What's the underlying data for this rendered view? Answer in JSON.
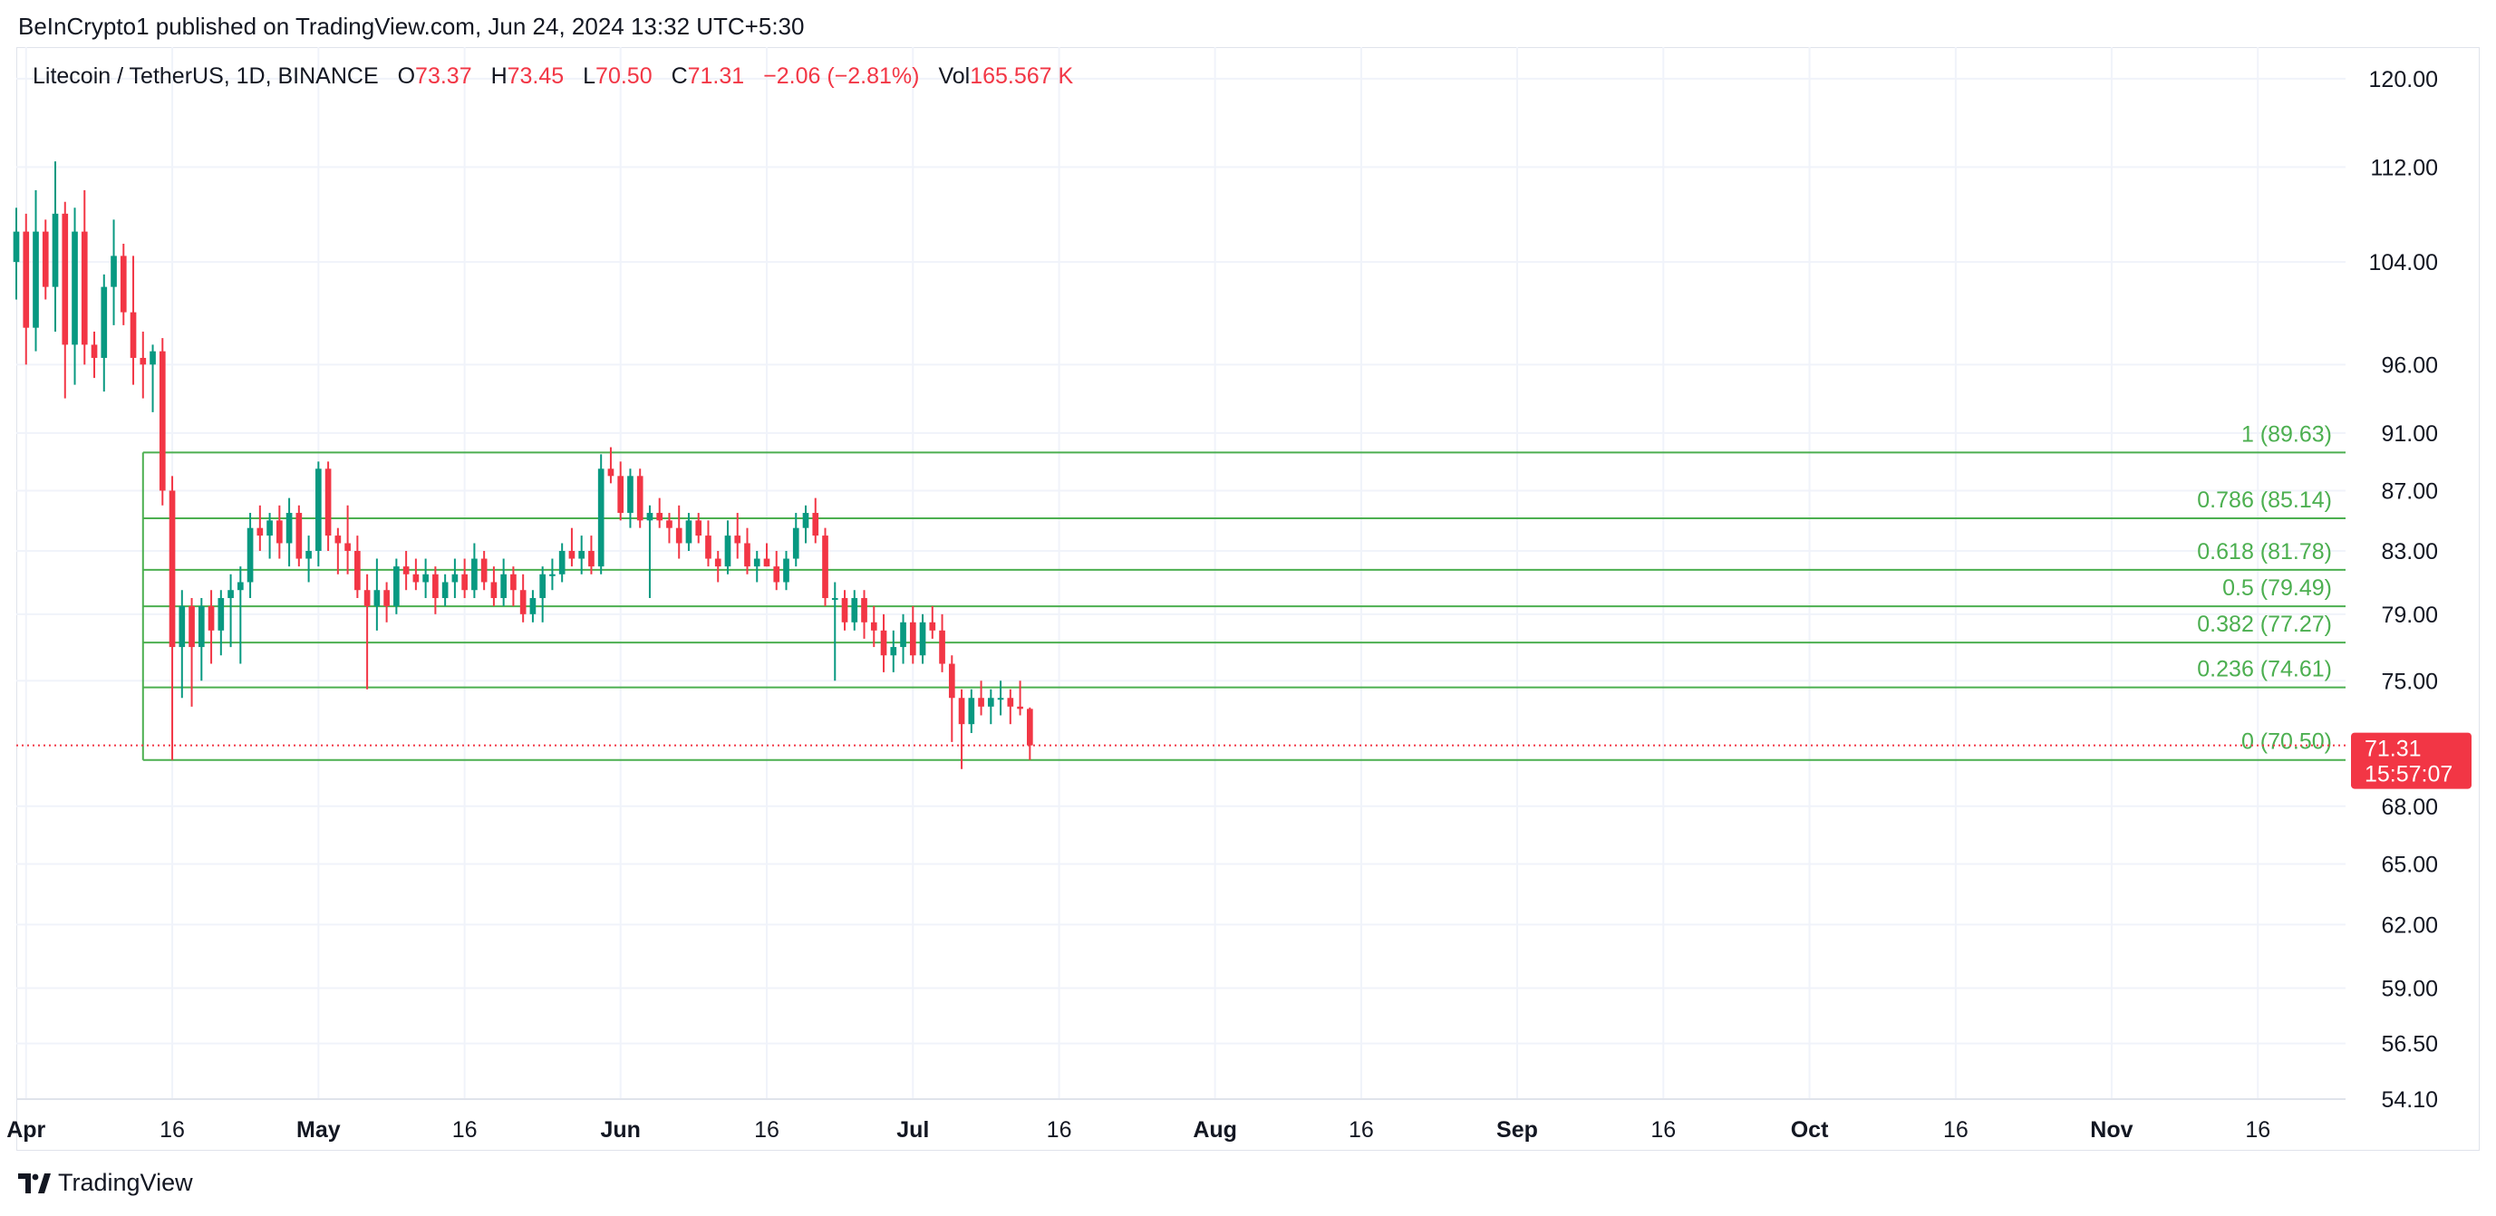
{
  "header": {
    "publish_line": "BeInCrypto1 published on TradingView.com, Jun 24, 2024 13:32 UTC+5:30"
  },
  "legend": {
    "symbol": "Litecoin / TetherUS, 1D, BINANCE",
    "o_label": "O",
    "o_value": "73.37",
    "h_label": "H",
    "h_value": "73.45",
    "l_label": "L",
    "l_value": "70.50",
    "c_label": "C",
    "c_value": "71.31",
    "change": "−2.06 (−2.81%)",
    "vol_label": "Vol",
    "vol_value": "165.567 K"
  },
  "price_tag": {
    "price": "71.31",
    "countdown": "15:57:07"
  },
  "brand": {
    "name": "TradingView",
    "icon": "tradingview-logo-icon"
  },
  "colors": {
    "up": "#089981",
    "down": "#f23645",
    "fib": "#4caf50",
    "grid": "#f0f3fa"
  },
  "chart_data": {
    "type": "candlestick",
    "scale": "log",
    "y_ticks": [
      "120.00",
      "112.00",
      "104.00",
      "96.00",
      "91.00",
      "87.00",
      "83.00",
      "79.00",
      "75.00",
      "68.00",
      "65.00",
      "62.00",
      "59.00",
      "56.50",
      "54.10"
    ],
    "x_ticks": [
      "Apr",
      "16",
      "May",
      "16",
      "Jun",
      "16",
      "Jul",
      "16",
      "Aug",
      "16",
      "Sep",
      "16",
      "Oct",
      "16",
      "Nov",
      "16"
    ],
    "x_ticks_bold": [
      true,
      false,
      true,
      false,
      true,
      false,
      true,
      false,
      true,
      false,
      true,
      false,
      true,
      false,
      true,
      false
    ],
    "x_range": [
      "2024-03-31",
      "2024-11-25"
    ],
    "y_range": [
      54.1,
      123
    ],
    "grid": true,
    "current_price": 71.31,
    "fibonacci": {
      "start_date": "2024-04-13",
      "levels": [
        {
          "ratio": "1",
          "price": 89.63,
          "label": "1 (89.63)"
        },
        {
          "ratio": "0.786",
          "price": 85.14,
          "label": "0.786 (85.14)"
        },
        {
          "ratio": "0.618",
          "price": 81.78,
          "label": "0.618 (81.78)"
        },
        {
          "ratio": "0.5",
          "price": 79.49,
          "label": "0.5 (79.49)"
        },
        {
          "ratio": "0.382",
          "price": 77.27,
          "label": "0.382 (77.27)"
        },
        {
          "ratio": "0.236",
          "price": 74.61,
          "label": "0.236 (74.61)"
        },
        {
          "ratio": "0",
          "price": 70.5,
          "label": "0 (70.50)"
        }
      ]
    },
    "candles": [
      [
        "2024-03-31",
        104.0,
        108.5,
        101.0,
        106.5
      ],
      [
        "2024-04-01",
        106.5,
        108.0,
        96.0,
        98.8
      ],
      [
        "2024-04-02",
        98.8,
        110.0,
        97.0,
        106.5
      ],
      [
        "2024-04-03",
        106.5,
        107.5,
        101.0,
        102.0
      ],
      [
        "2024-04-04",
        102.0,
        112.5,
        98.5,
        108.0
      ],
      [
        "2024-04-05",
        108.0,
        109.0,
        93.5,
        97.5
      ],
      [
        "2024-04-06",
        97.5,
        108.5,
        94.5,
        106.5
      ],
      [
        "2024-04-07",
        106.5,
        110.0,
        96.0,
        97.5
      ],
      [
        "2024-04-08",
        97.5,
        98.5,
        95.0,
        96.5
      ],
      [
        "2024-04-09",
        96.5,
        103.0,
        94.0,
        102.0
      ],
      [
        "2024-04-10",
        102.0,
        107.5,
        99.0,
        104.5
      ],
      [
        "2024-04-11",
        104.5,
        105.5,
        99.0,
        100.0
      ],
      [
        "2024-04-12",
        100.0,
        104.5,
        94.5,
        96.5
      ],
      [
        "2024-04-13",
        96.5,
        98.5,
        93.5,
        96.0
      ],
      [
        "2024-04-14",
        96.0,
        97.5,
        92.5,
        97.0
      ],
      [
        "2024-04-15",
        97.0,
        98.0,
        86.0,
        87.0
      ],
      [
        "2024-04-16",
        87.0,
        88.0,
        70.5,
        77.0
      ],
      [
        "2024-04-17",
        77.0,
        80.5,
        74.0,
        79.5
      ],
      [
        "2024-04-18",
        79.5,
        80.0,
        73.5,
        77.0
      ],
      [
        "2024-04-19",
        77.0,
        80.0,
        75.0,
        79.5
      ],
      [
        "2024-04-20",
        79.5,
        80.5,
        76.0,
        78.0
      ],
      [
        "2024-04-21",
        78.0,
        80.5,
        76.5,
        80.0
      ],
      [
        "2024-04-22",
        80.0,
        81.5,
        77.0,
        80.5
      ],
      [
        "2024-04-23",
        80.5,
        82.0,
        76.0,
        81.0
      ],
      [
        "2024-04-24",
        81.0,
        85.5,
        80.0,
        84.5
      ],
      [
        "2024-04-25",
        84.5,
        86.0,
        83.0,
        84.0
      ],
      [
        "2024-04-26",
        84.0,
        85.5,
        82.5,
        85.0
      ],
      [
        "2024-04-27",
        85.0,
        86.0,
        82.5,
        83.5
      ],
      [
        "2024-04-28",
        83.5,
        86.5,
        82.0,
        85.5
      ],
      [
        "2024-04-29",
        85.5,
        86.0,
        82.0,
        82.5
      ],
      [
        "2024-04-30",
        82.5,
        84.0,
        81.0,
        83.0
      ],
      [
        "2024-05-01",
        83.0,
        89.0,
        82.0,
        88.5
      ],
      [
        "2024-05-02",
        88.5,
        89.0,
        83.0,
        84.0
      ],
      [
        "2024-05-03",
        84.0,
        84.5,
        81.5,
        83.5
      ],
      [
        "2024-05-04",
        83.5,
        86.0,
        81.5,
        83.0
      ],
      [
        "2024-05-05",
        83.0,
        84.0,
        80.0,
        80.5
      ],
      [
        "2024-05-06",
        80.5,
        81.5,
        74.5,
        79.5
      ],
      [
        "2024-05-07",
        79.5,
        82.5,
        78.0,
        80.5
      ],
      [
        "2024-05-08",
        80.5,
        81.0,
        78.5,
        79.5
      ],
      [
        "2024-05-09",
        79.5,
        82.5,
        79.0,
        82.0
      ],
      [
        "2024-05-10",
        82.0,
        83.0,
        80.5,
        81.5
      ],
      [
        "2024-05-11",
        81.5,
        82.5,
        80.5,
        81.0
      ],
      [
        "2024-05-12",
        81.0,
        82.5,
        80.0,
        81.5
      ],
      [
        "2024-05-13",
        81.5,
        82.0,
        79.0,
        80.0
      ],
      [
        "2024-05-14",
        80.0,
        81.5,
        79.5,
        81.0
      ],
      [
        "2024-05-15",
        81.0,
        82.5,
        80.0,
        81.5
      ],
      [
        "2024-05-16",
        81.5,
        82.5,
        80.0,
        80.5
      ],
      [
        "2024-05-17",
        80.5,
        83.5,
        80.0,
        82.5
      ],
      [
        "2024-05-18",
        82.5,
        83.0,
        80.5,
        81.0
      ],
      [
        "2024-05-19",
        81.0,
        82.0,
        79.5,
        80.0
      ],
      [
        "2024-05-20",
        80.0,
        82.5,
        79.5,
        81.5
      ],
      [
        "2024-05-21",
        81.5,
        82.0,
        79.5,
        80.5
      ],
      [
        "2024-05-22",
        80.5,
        81.5,
        78.5,
        79.0
      ],
      [
        "2024-05-23",
        79.0,
        80.5,
        78.5,
        80.0
      ],
      [
        "2024-05-24",
        80.0,
        82.0,
        78.5,
        81.5
      ],
      [
        "2024-05-25",
        81.5,
        82.5,
        80.5,
        81.5
      ],
      [
        "2024-05-26",
        81.5,
        83.5,
        81.0,
        83.0
      ],
      [
        "2024-05-27",
        83.0,
        84.5,
        82.0,
        82.5
      ],
      [
        "2024-05-28",
        82.5,
        84.0,
        81.5,
        83.0
      ],
      [
        "2024-05-29",
        83.0,
        84.0,
        81.5,
        82.0
      ],
      [
        "2024-05-30",
        82.0,
        89.5,
        81.5,
        88.5
      ],
      [
        "2024-05-31",
        88.5,
        90.0,
        87.5,
        88.0
      ],
      [
        "2024-06-01",
        88.0,
        89.0,
        85.0,
        85.5
      ],
      [
        "2024-06-02",
        85.5,
        88.5,
        84.5,
        88.0
      ],
      [
        "2024-06-03",
        88.0,
        88.5,
        84.5,
        85.0
      ],
      [
        "2024-06-04",
        85.0,
        86.0,
        80.0,
        85.5
      ],
      [
        "2024-06-05",
        85.5,
        86.5,
        84.5,
        85.0
      ],
      [
        "2024-06-06",
        85.0,
        85.5,
        83.5,
        84.5
      ],
      [
        "2024-06-07",
        84.5,
        86.0,
        82.5,
        83.5
      ],
      [
        "2024-06-08",
        83.5,
        85.5,
        83.0,
        85.0
      ],
      [
        "2024-06-09",
        85.0,
        85.5,
        83.5,
        84.0
      ],
      [
        "2024-06-10",
        84.0,
        85.0,
        82.0,
        82.5
      ],
      [
        "2024-06-11",
        82.5,
        83.0,
        81.0,
        82.0
      ],
      [
        "2024-06-12",
        82.0,
        85.0,
        81.5,
        84.0
      ],
      [
        "2024-06-13",
        84.0,
        85.5,
        82.5,
        83.5
      ],
      [
        "2024-06-14",
        83.5,
        84.5,
        81.5,
        82.0
      ],
      [
        "2024-06-15",
        82.0,
        83.0,
        81.0,
        82.5
      ],
      [
        "2024-06-16",
        82.5,
        83.5,
        82.0,
        82.0
      ],
      [
        "2024-06-17",
        82.0,
        83.0,
        80.5,
        81.0
      ],
      [
        "2024-06-18",
        81.0,
        83.0,
        80.5,
        82.5
      ],
      [
        "2024-06-19",
        82.5,
        85.5,
        82.0,
        84.5
      ],
      [
        "2024-06-20",
        84.5,
        86.0,
        83.5,
        85.5
      ],
      [
        "2024-06-21",
        85.5,
        86.5,
        83.5,
        84.0
      ],
      [
        "2024-06-22",
        84.0,
        84.5,
        79.5,
        80.0
      ],
      [
        "2024-06-23",
        80.0,
        81.0,
        75.0,
        80.0
      ],
      [
        "2024-06-24",
        80.0,
        80.5,
        78.0,
        78.5
      ],
      [
        "2024-06-25",
        78.5,
        80.5,
        78.0,
        80.0
      ],
      [
        "2024-06-26",
        80.0,
        80.5,
        77.5,
        78.5
      ],
      [
        "2024-06-27",
        78.5,
        79.5,
        77.0,
        78.0
      ],
      [
        "2024-06-28",
        78.0,
        79.0,
        75.5,
        76.5
      ],
      [
        "2024-06-29",
        76.5,
        78.0,
        75.5,
        77.0
      ],
      [
        "2024-06-30",
        77.0,
        79.0,
        76.0,
        78.5
      ],
      [
        "2024-07-01",
        78.5,
        79.5,
        76.0,
        76.5
      ],
      [
        "2024-07-02",
        76.5,
        79.0,
        76.0,
        78.5
      ],
      [
        "2024-07-03",
        78.5,
        79.5,
        77.5,
        78.0
      ],
      [
        "2024-07-04",
        78.0,
        79.0,
        75.5,
        76.0
      ],
      [
        "2024-07-05",
        76.0,
        76.5,
        71.5,
        74.0
      ],
      [
        "2024-07-06",
        74.0,
        74.5,
        70.0,
        72.5
      ],
      [
        "2024-07-07",
        72.5,
        74.5,
        72.0,
        74.0
      ],
      [
        "2024-07-08",
        74.0,
        75.0,
        73.0,
        73.5
      ],
      [
        "2024-07-09",
        73.5,
        74.5,
        72.5,
        74.0
      ],
      [
        "2024-07-10",
        74.0,
        75.0,
        73.0,
        74.0
      ],
      [
        "2024-07-11",
        74.0,
        74.5,
        72.5,
        73.5
      ],
      [
        "2024-07-12",
        73.5,
        75.0,
        73.0,
        73.37
      ],
      [
        "2024-07-13",
        73.37,
        73.45,
        70.5,
        71.31
      ]
    ]
  }
}
